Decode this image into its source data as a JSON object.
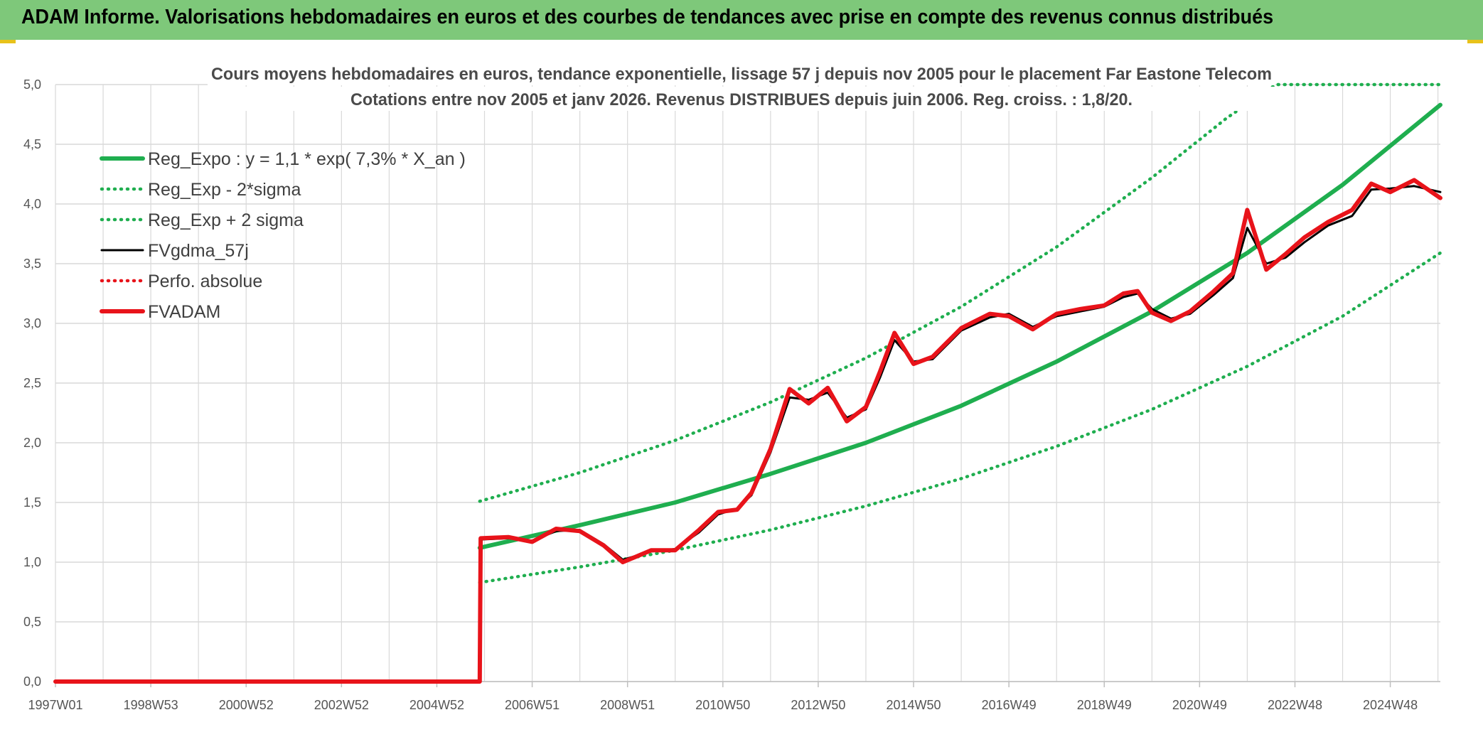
{
  "header": {
    "title": "ADAM Informe. Valorisations hebdomadaires en euros et des courbes de tendances avec prise en compte des revenus connus distribués"
  },
  "colors": {
    "header": "#7ec87a",
    "trend": "#1fae4f",
    "price": "#e8131a",
    "ma": "#000000",
    "grid": "#d9d9d9"
  },
  "chart_data": {
    "type": "line",
    "title_lines": [
      "Cours moyens hebdomadaires en euros, tendance exponentielle, lissage 57 j depuis nov 2005 pour le placement Far Eastone Telecom",
      "Cotations entre nov 2005 et janv 2026. Revenus DISTRIBUES depuis juin 2006. Reg. croiss. : 1,8/20."
    ],
    "xlabel": "",
    "ylabel": "",
    "x_range": [
      1997.0,
      2026.05
    ],
    "ylim": [
      0,
      5
    ],
    "y_ticks": [
      "0,0",
      "0,5",
      "1,0",
      "1,5",
      "2,0",
      "2,5",
      "3,0",
      "3,5",
      "4,0",
      "4,5",
      "5,0"
    ],
    "x_ticks": [
      {
        "x": 1997.0,
        "label": "1997W01"
      },
      {
        "x": 1999.0,
        "label": "1998W53"
      },
      {
        "x": 2001.0,
        "label": "2000W52"
      },
      {
        "x": 2003.0,
        "label": "2002W52"
      },
      {
        "x": 2005.0,
        "label": "2004W52"
      },
      {
        "x": 2007.0,
        "label": "2006W51"
      },
      {
        "x": 2009.0,
        "label": "2008W51"
      },
      {
        "x": 2011.0,
        "label": "2010W50"
      },
      {
        "x": 2013.0,
        "label": "2012W50"
      },
      {
        "x": 2015.0,
        "label": "2014W50"
      },
      {
        "x": 2017.0,
        "label": "2016W49"
      },
      {
        "x": 2019.0,
        "label": "2018W49"
      },
      {
        "x": 2021.0,
        "label": "2020W49"
      },
      {
        "x": 2023.0,
        "label": "2022W48"
      },
      {
        "x": 2025.0,
        "label": "2024W48"
      }
    ],
    "grid": true,
    "legend_position": "top-left",
    "series": [
      {
        "name": "Reg_Expo : y = 1,1 * exp( 7,3% *  X_an )",
        "style": "solid-thick",
        "color": "#1fae4f",
        "x": [
          2005.9,
          2008,
          2010,
          2012,
          2014,
          2016,
          2018,
          2020,
          2022,
          2024,
          2026.05
        ],
        "y": [
          1.12,
          1.31,
          1.5,
          1.74,
          2.0,
          2.31,
          2.68,
          3.1,
          3.59,
          4.16,
          4.83
        ]
      },
      {
        "name": "Reg_Exp - 2*sigma",
        "style": "dotted",
        "color": "#1fae4f",
        "x": [
          2005.9,
          2008,
          2010,
          2012,
          2014,
          2016,
          2018,
          2020,
          2022,
          2024,
          2026.05
        ],
        "y": [
          0.83,
          0.96,
          1.1,
          1.27,
          1.47,
          1.7,
          1.97,
          2.28,
          2.64,
          3.06,
          3.59
        ]
      },
      {
        "name": "Reg_Exp + 2 sigma",
        "style": "dotted",
        "color": "#1fae4f",
        "x": [
          2005.9,
          2008,
          2010,
          2012,
          2014,
          2016,
          2018,
          2020,
          2021.57,
          2022.6,
          2026.05
        ],
        "y": [
          1.51,
          1.75,
          2.02,
          2.34,
          2.71,
          3.14,
          3.64,
          4.22,
          4.72,
          5.0,
          5.0
        ]
      },
      {
        "name": "FVgdma_57j",
        "style": "solid",
        "color": "#000000",
        "x": [
          2005.9,
          2006.5,
          2007.0,
          2007.5,
          2008.0,
          2008.5,
          2008.9,
          2009.5,
          2010.0,
          2010.5,
          2010.9,
          2011.3,
          2011.6,
          2012.0,
          2012.4,
          2012.8,
          2013.2,
          2013.6,
          2014.0,
          2014.3,
          2014.6,
          2015.0,
          2015.4,
          2016.0,
          2016.6,
          2017.0,
          2017.5,
          2018.0,
          2018.5,
          2019.0,
          2019.4,
          2019.7,
          2020.0,
          2020.4,
          2020.8,
          2021.3,
          2021.7,
          2022.0,
          2022.4,
          2022.8,
          2023.2,
          2023.7,
          2024.2,
          2024.6,
          2025.0,
          2025.5,
          2026.05
        ],
        "y": [
          1.19,
          1.2,
          1.18,
          1.26,
          1.27,
          1.15,
          1.02,
          1.09,
          1.11,
          1.25,
          1.4,
          1.45,
          1.56,
          1.92,
          2.38,
          2.36,
          2.42,
          2.21,
          2.28,
          2.55,
          2.86,
          2.68,
          2.7,
          2.94,
          3.05,
          3.08,
          2.97,
          3.06,
          3.1,
          3.14,
          3.22,
          3.25,
          3.12,
          3.04,
          3.08,
          3.24,
          3.38,
          3.8,
          3.5,
          3.55,
          3.68,
          3.82,
          3.9,
          4.12,
          4.13,
          4.15,
          4.1
        ]
      },
      {
        "name": "Perfo. absolue",
        "style": "dotted",
        "color": "#e8131a",
        "x": [
          1997.0,
          2005.9,
          2005.92,
          2006.5,
          2007.0,
          2007.5,
          2008.0,
          2008.5,
          2008.9,
          2009.5,
          2010.0,
          2010.5,
          2010.9,
          2011.3,
          2011.6,
          2012.0,
          2012.4,
          2012.8,
          2013.2,
          2013.6,
          2014.0,
          2014.3,
          2014.6,
          2015.0,
          2015.4,
          2016.0,
          2016.6,
          2017.0,
          2017.5,
          2018.0,
          2018.5,
          2019.0,
          2019.4,
          2019.7,
          2020.0,
          2020.4,
          2020.8,
          2021.3,
          2021.7,
          2022.0,
          2022.4,
          2022.8,
          2023.2,
          2023.7,
          2024.2,
          2024.6,
          2025.0,
          2025.5,
          2026.05
        ],
        "y": [
          0.0,
          0.0,
          1.2,
          1.21,
          1.17,
          1.28,
          1.26,
          1.14,
          1.0,
          1.1,
          1.1,
          1.27,
          1.42,
          1.44,
          1.58,
          1.95,
          2.45,
          2.33,
          2.46,
          2.18,
          2.3,
          2.6,
          2.92,
          2.66,
          2.72,
          2.96,
          3.08,
          3.06,
          2.95,
          3.08,
          3.12,
          3.15,
          3.25,
          3.27,
          3.09,
          3.02,
          3.1,
          3.27,
          3.42,
          3.95,
          3.45,
          3.58,
          3.72,
          3.85,
          3.95,
          4.17,
          4.1,
          4.2,
          4.05
        ]
      },
      {
        "name": "FVADAM",
        "style": "solid-thick",
        "color": "#e8131a",
        "x": [
          1997.0,
          2005.9,
          2005.92,
          2006.5,
          2007.0,
          2007.5,
          2008.0,
          2008.5,
          2008.9,
          2009.5,
          2010.0,
          2010.5,
          2010.9,
          2011.3,
          2011.6,
          2012.0,
          2012.4,
          2012.8,
          2013.2,
          2013.6,
          2014.0,
          2014.3,
          2014.6,
          2015.0,
          2015.4,
          2016.0,
          2016.6,
          2017.0,
          2017.5,
          2018.0,
          2018.5,
          2019.0,
          2019.4,
          2019.7,
          2020.0,
          2020.4,
          2020.8,
          2021.3,
          2021.7,
          2022.0,
          2022.4,
          2022.8,
          2023.2,
          2023.7,
          2024.2,
          2024.6,
          2025.0,
          2025.5,
          2026.05
        ],
        "y": [
          0.0,
          0.0,
          1.2,
          1.21,
          1.17,
          1.28,
          1.26,
          1.14,
          1.0,
          1.1,
          1.1,
          1.27,
          1.42,
          1.44,
          1.58,
          1.95,
          2.45,
          2.33,
          2.46,
          2.18,
          2.3,
          2.6,
          2.92,
          2.66,
          2.72,
          2.96,
          3.08,
          3.06,
          2.95,
          3.08,
          3.12,
          3.15,
          3.25,
          3.27,
          3.09,
          3.02,
          3.1,
          3.27,
          3.42,
          3.95,
          3.45,
          3.58,
          3.72,
          3.85,
          3.95,
          4.17,
          4.1,
          4.2,
          4.05
        ]
      }
    ]
  }
}
